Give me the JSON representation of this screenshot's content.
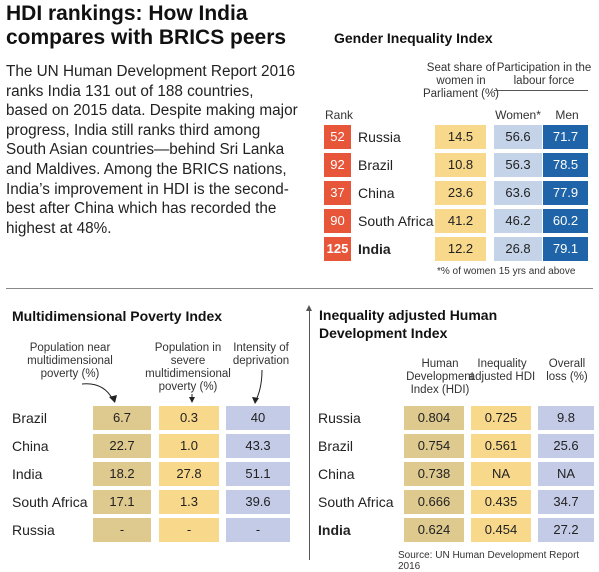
{
  "headline": "HDI rankings: How India compares with BRICS peers",
  "intro": "The UN Human Development Report 2016 ranks India 131 out of 188 countries, based on 2015 data. Despite making major progress, India still ranks third among South Asian countries—behind Sri Lanka and Maldives. Among the BRICS nations, India’s improvement in HDI is the second-best after China which has recorded the highest at 48%.",
  "source": "Source: UN Human Development Report 2016",
  "colors": {
    "rank": "#e8563a",
    "yellow": "#f8d88a",
    "light_blue": "#c4d3e8",
    "dark_blue": "#1f64a8",
    "tan": "#dec98e",
    "purple": "#c4cbe7"
  },
  "chart_data": [
    {
      "type": "table",
      "title": "Gender Inequality Index",
      "headers": {
        "rank": "Rank",
        "seat_share": "Seat share of women in Parliament (%)",
        "participation": "Participation in the labour force",
        "women": "Women*",
        "men": "Men"
      },
      "footnote": "*% of women 15 yrs and above",
      "rows": [
        {
          "rank": "52",
          "country": "Russia",
          "seat_share": "14.5",
          "women": "56.6",
          "men": "71.7"
        },
        {
          "rank": "92",
          "country": "Brazil",
          "seat_share": "10.8",
          "women": "56.3",
          "men": "78.5"
        },
        {
          "rank": "37",
          "country": "China",
          "seat_share": "23.6",
          "women": "63.6",
          "men": "77.9"
        },
        {
          "rank": "90",
          "country": "South Africa",
          "seat_share": "41.2",
          "women": "46.2",
          "men": "60.2"
        },
        {
          "rank": "125",
          "country": "India",
          "seat_share": "12.2",
          "women": "26.8",
          "men": "79.1"
        }
      ]
    },
    {
      "type": "table",
      "title": "Multidimensional Poverty Index",
      "headers": {
        "near": "Population near multidimensional poverty (%)",
        "severe": "Population in severe multidimensional poverty (%)",
        "intensity": "Intensity of deprivation"
      },
      "rows": [
        {
          "country": "Brazil",
          "near": "6.7",
          "severe": "0.3",
          "intensity": "40"
        },
        {
          "country": "China",
          "near": "22.7",
          "severe": "1.0",
          "intensity": "43.3"
        },
        {
          "country": "India",
          "near": "18.2",
          "severe": "27.8",
          "intensity": "51.1"
        },
        {
          "country": "South Africa",
          "near": "17.1",
          "severe": "1.3",
          "intensity": "39.6"
        },
        {
          "country": "Russia",
          "near": "-",
          "severe": "-",
          "intensity": "-"
        }
      ]
    },
    {
      "type": "table",
      "title": "Inequality adjusted Human Development Index",
      "headers": {
        "hdi": "Human Development Index (HDI)",
        "ihdi": "Inequality adjusted HDI",
        "loss": "Overall loss (%)"
      },
      "rows": [
        {
          "country": "Russia",
          "hdi": "0.804",
          "ihdi": "0.725",
          "loss": "9.8"
        },
        {
          "country": "Brazil",
          "hdi": "0.754",
          "ihdi": "0.561",
          "loss": "25.6"
        },
        {
          "country": "China",
          "hdi": "0.738",
          "ihdi": "NA",
          "loss": "NA"
        },
        {
          "country": "South Africa",
          "hdi": "0.666",
          "ihdi": "0.435",
          "loss": "34.7"
        },
        {
          "country": "India",
          "hdi": "0.624",
          "ihdi": "0.454",
          "loss": "27.2"
        }
      ]
    }
  ]
}
